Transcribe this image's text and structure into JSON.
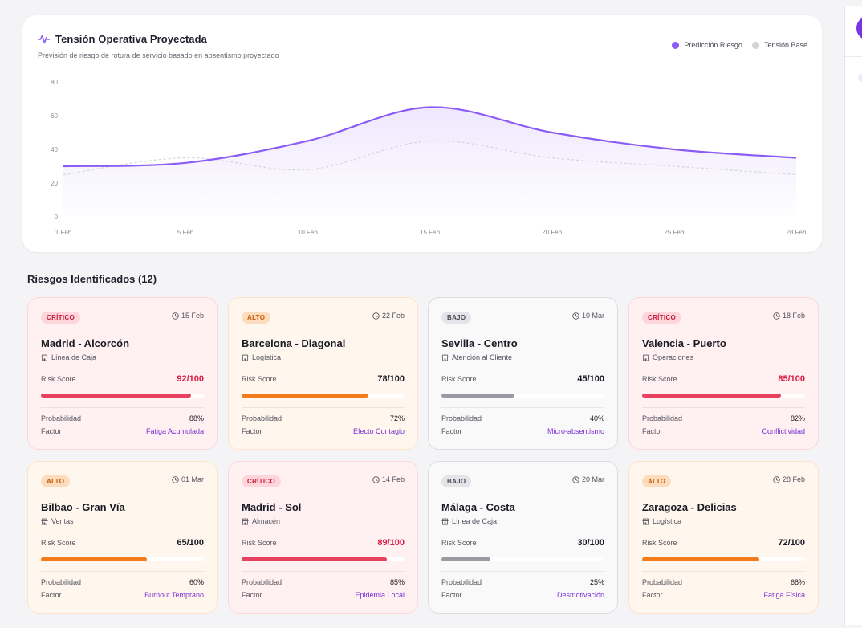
{
  "chart_card": {
    "title": "Tensión Operativa Proyectada",
    "subtitle": "Previsión de riesgo de rotura de servicio basado en absentismo proyectado",
    "icon": "activity-icon",
    "legend": [
      {
        "label": "Predicción Riesgo",
        "color": "#8b5cf6"
      },
      {
        "label": "Tensión Base",
        "color": "#d4d4d8"
      }
    ]
  },
  "chart_data": {
    "type": "area",
    "title": "Tensión Operativa Proyectada",
    "x": [
      "1 Feb",
      "5 Feb",
      "10 Feb",
      "15 Feb",
      "20 Feb",
      "25 Feb",
      "28 Feb"
    ],
    "series": [
      {
        "name": "Predicción Riesgo",
        "values": [
          30,
          32,
          45,
          65,
          50,
          40,
          35
        ],
        "color": "#8b5cf6"
      },
      {
        "name": "Tensión Base",
        "values": [
          25,
          35,
          28,
          45,
          35,
          30,
          25
        ],
        "color": "#d4d4d8"
      }
    ],
    "yticks": [
      0,
      20,
      40,
      60,
      80
    ],
    "ylim": [
      0,
      80
    ],
    "legend_position": "top-right",
    "grid": false
  },
  "risks": {
    "title": "Riesgos Identificados (12)",
    "score_label": "Risk Score",
    "prob_label": "Probabilidad",
    "factor_label": "Factor",
    "cards": [
      {
        "level": "critico",
        "badge": "CRÍTICO",
        "date": "15 Feb",
        "location": "Madrid - Alcorcón",
        "dept": "Línea de Caja",
        "score": "92/100",
        "score_pct": 92,
        "probability": "88%",
        "factor": "Fatiga Acumulada"
      },
      {
        "level": "alto",
        "badge": "ALTO",
        "date": "22 Feb",
        "location": "Barcelona - Diagonal",
        "dept": "Logística",
        "score": "78/100",
        "score_pct": 78,
        "probability": "72%",
        "factor": "Efecto Contagio"
      },
      {
        "level": "bajo",
        "badge": "BAJO",
        "date": "10 Mar",
        "location": "Sevilla - Centro",
        "dept": "Atención al Cliente",
        "score": "45/100",
        "score_pct": 45,
        "probability": "40%",
        "factor": "Micro-absentismo"
      },
      {
        "level": "critico",
        "badge": "CRÍTICO",
        "date": "18 Feb",
        "location": "Valencia - Puerto",
        "dept": "Operaciones",
        "score": "85/100",
        "score_pct": 85,
        "probability": "82%",
        "factor": "Conflictividad"
      },
      {
        "level": "alto",
        "badge": "ALTO",
        "date": "01 Mar",
        "location": "Bilbao - Gran Vía",
        "dept": "Ventas",
        "score": "65/100",
        "score_pct": 65,
        "probability": "60%",
        "factor": "Burnout Temprano"
      },
      {
        "level": "critico",
        "badge": "CRÍTICO",
        "date": "14 Feb",
        "location": "Madrid - Sol",
        "dept": "Almacén",
        "score": "89/100",
        "score_pct": 89,
        "probability": "85%",
        "factor": "Epidemia Local"
      },
      {
        "level": "bajo",
        "badge": "BAJO",
        "date": "20 Mar",
        "location": "Málaga - Costa",
        "dept": "Línea de Caja",
        "score": "30/100",
        "score_pct": 30,
        "probability": "25%",
        "factor": "Desmotivación"
      },
      {
        "level": "alto",
        "badge": "ALTO",
        "date": "28 Feb",
        "location": "Zaragoza - Delicias",
        "dept": "Logística",
        "score": "72/100",
        "score_pct": 72,
        "probability": "68%",
        "factor": "Fatiga Física"
      }
    ]
  }
}
